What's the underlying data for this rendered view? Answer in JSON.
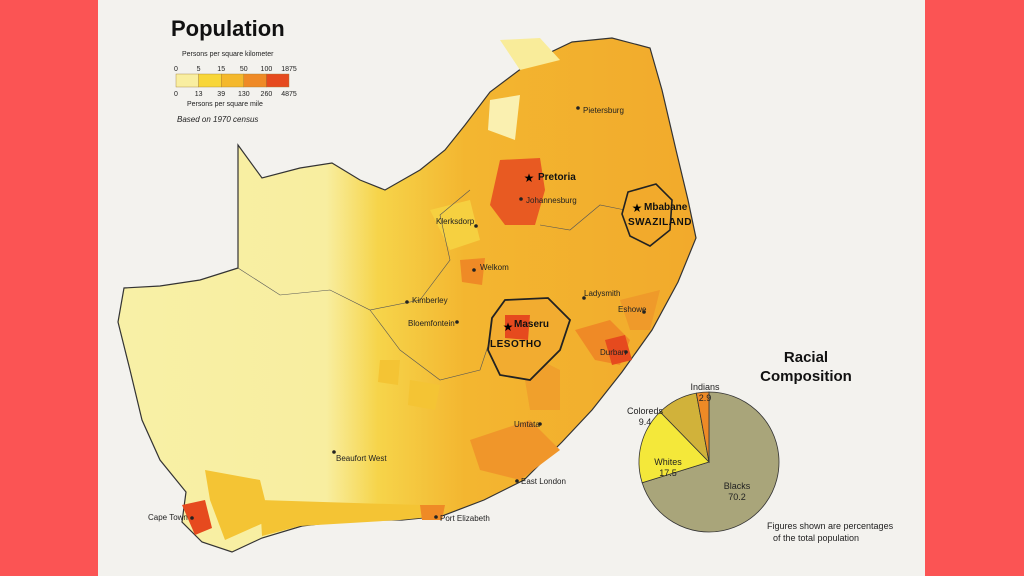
{
  "legend": {
    "title": "Population",
    "unit_top": "Persons per square kilometer",
    "ticks_km": [
      "0",
      "5",
      "15",
      "50",
      "100",
      "1875"
    ],
    "ticks_mi": [
      "0",
      "13",
      "39",
      "130",
      "260",
      "4875"
    ],
    "unit_bottom": "Persons per square mile",
    "note": "Based on 1970 census",
    "colors": [
      "#f9eea0",
      "#f8d638",
      "#f4b82c",
      "#ef8a26",
      "#e64a1e"
    ]
  },
  "map": {
    "countries": {
      "swaziland": "SWAZILAND",
      "lesotho": "LESOTHO"
    },
    "capitals": {
      "pretoria": "Pretoria",
      "mbabane": "Mbabane",
      "maseru": "Maseru"
    },
    "cities": {
      "pietersburg": "Pietersburg",
      "johannesburg": "Johannesburg",
      "klerksdorp": "Klerksdorp",
      "welkom": "Welkom",
      "kimberley": "Kimberley",
      "bloemfontein": "Bloemfontein",
      "ladysmith": "Ladysmith",
      "eshowe": "Eshowe",
      "durban": "Durban",
      "umtata": "Umtata",
      "beaufort_west": "Beaufort West",
      "east_london": "East London",
      "cape_town": "Cape Town",
      "port_elizabeth": "Port Elizabeth"
    }
  },
  "racial_composition": {
    "title_line1": "Racial",
    "title_line2": "Composition",
    "slices": [
      {
        "name": "Blacks",
        "value": 70.2,
        "label": "70.2",
        "color": "#a9a57a"
      },
      {
        "name": "Whites",
        "value": 17.5,
        "label": "17.5",
        "color": "#f4e83a"
      },
      {
        "name": "Coloreds",
        "value": 9.4,
        "label": "9.4",
        "color": "#d1b23a"
      },
      {
        "name": "Indians",
        "value": 2.9,
        "label": "2.9",
        "color": "#ee8a26"
      }
    ],
    "footnote_line1": "Figures shown are percentages",
    "footnote_line2": "of the total population"
  }
}
